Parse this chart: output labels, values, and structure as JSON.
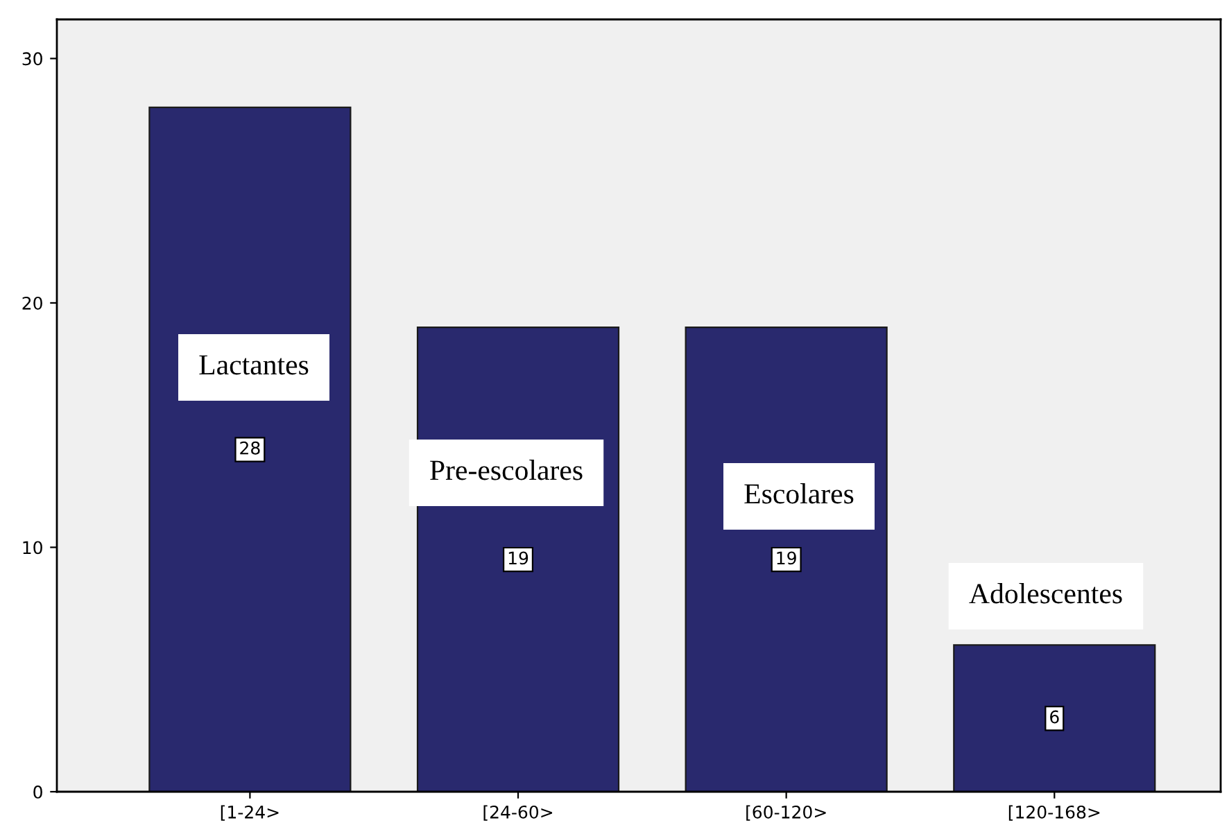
{
  "chart_data": {
    "type": "bar",
    "categories": [
      "[1-24>",
      "[24-60>",
      "[60-120>",
      "[120-168>"
    ],
    "values": [
      28,
      19,
      19,
      6
    ],
    "color": "#29296e",
    "ylim": [
      0,
      31.6
    ],
    "yticks": [
      0,
      10,
      20,
      30
    ],
    "grid": false,
    "legend": false,
    "data_labels": true,
    "annotations": [
      "Lactantes",
      "Pre-escolares",
      "Escolares",
      "Adolescentes"
    ]
  }
}
